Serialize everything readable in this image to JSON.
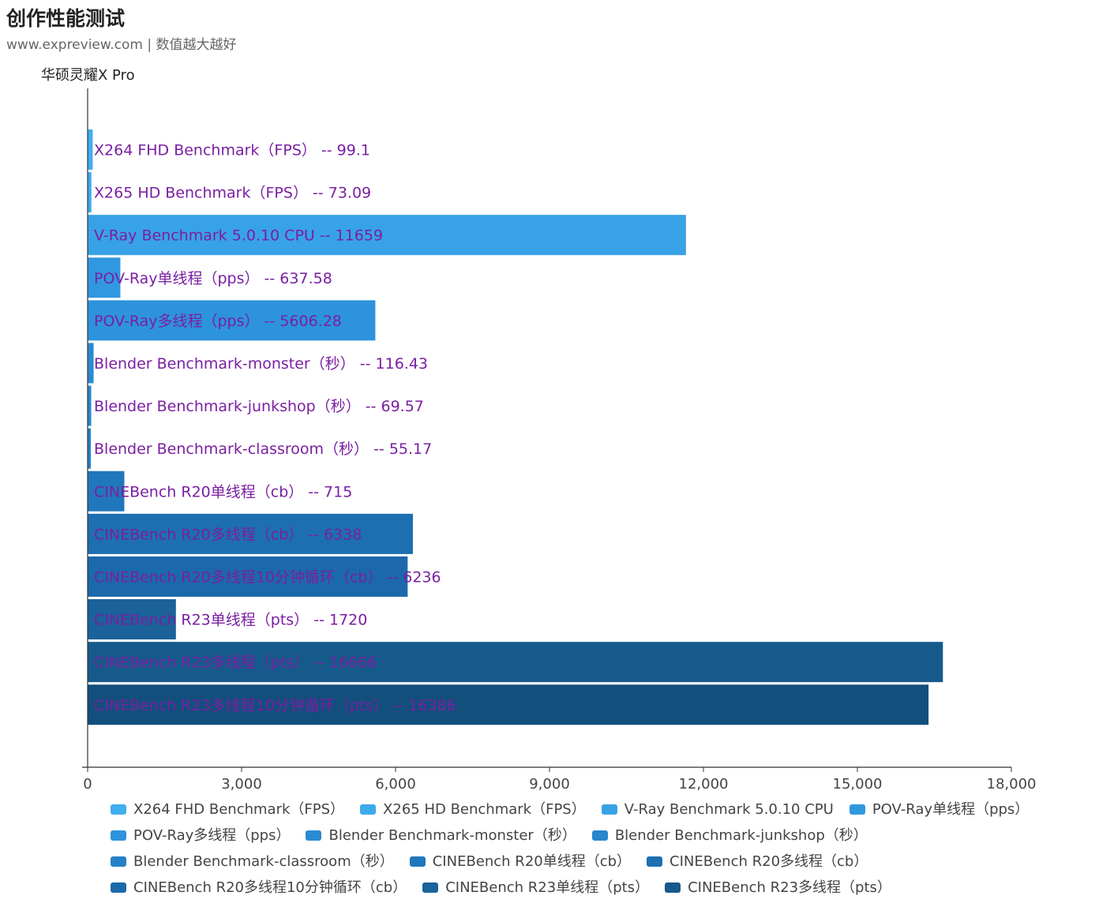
{
  "header": {
    "title": "创作性能测试",
    "subtitle": "www.expreview.com | 数值越大越好",
    "series_label": "华硕灵耀X Pro"
  },
  "chart_data": {
    "type": "bar",
    "orientation": "horizontal",
    "title": "创作性能测试",
    "subtitle": "www.expreview.com | 数值越大越好",
    "series_name": "华硕灵耀X Pro",
    "categories": [
      "X264 FHD Benchmark（FPS）",
      "X265 HD Benchmark（FPS）",
      "V-Ray Benchmark 5.0.10 CPU",
      "POV-Ray单线程（pps）",
      "POV-Ray多线程（pps）",
      "Blender Benchmark-monster（秒）",
      "Blender Benchmark-junkshop（秒）",
      "Blender Benchmark-classroom（秒）",
      "CINEBench R20单线程（cb）",
      "CINEBench R20多线程（cb）",
      "CINEBench R20多线程10分钟循环（cb）",
      "CINEBench R23单线程（pts）",
      "CINEBench R23多线程（pts）",
      "CINEBench R23多线程10分钟循环（pts）"
    ],
    "values": [
      99.1,
      73.09,
      11659,
      637.58,
      5606.28,
      116.43,
      69.57,
      55.17,
      715,
      6338,
      6236,
      1720,
      16666,
      16386
    ],
    "value_labels": [
      "99.1",
      "73.09",
      "11659",
      "637.58",
      "5606.28",
      "116.43",
      "69.57",
      "55.17",
      "715",
      "6338",
      "6236",
      "1720",
      "16666",
      "16386"
    ],
    "separator": "--",
    "colors": [
      "#41aef0",
      "#3ea9ec",
      "#38a2e6",
      "#3098e0",
      "#2d93dc",
      "#2a8bd2",
      "#2786cc",
      "#2480c6",
      "#2177bb",
      "#1d6fb0",
      "#1b69aa",
      "#1a6299",
      "#165a8b",
      "#124f7c"
    ],
    "label_color": "#7a1fa2",
    "xlim": [
      0,
      18000
    ],
    "xticks": [
      0,
      3000,
      6000,
      9000,
      12000,
      15000,
      18000
    ],
    "xtick_labels": [
      "0",
      "3,000",
      "6,000",
      "9,000",
      "12,000",
      "15,000",
      "18,000"
    ],
    "grid": false,
    "legend": "bottom"
  },
  "legend": {
    "rows": [
      [
        {
          "label": "X264 FHD Benchmark（FPS）",
          "color": "#41aef0"
        },
        {
          "label": "X265 HD Benchmark（FPS）",
          "color": "#3ea9ec"
        },
        {
          "label": "V-Ray Benchmark 5.0.10 CPU",
          "color": "#38a2e6"
        },
        {
          "label": "POV-Ray单线程（pps）",
          "color": "#3098e0"
        }
      ],
      [
        {
          "label": "POV-Ray多线程（pps）",
          "color": "#2d93dc"
        },
        {
          "label": "Blender Benchmark-monster（秒）",
          "color": "#2a8bd2"
        },
        {
          "label": "Blender Benchmark-junkshop（秒）",
          "color": "#2786cc"
        }
      ],
      [
        {
          "label": "Blender Benchmark-classroom（秒）",
          "color": "#2480c6"
        },
        {
          "label": "CINEBench R20单线程（cb）",
          "color": "#2177bb"
        },
        {
          "label": "CINEBench R20多线程（cb）",
          "color": "#1d6fb0"
        }
      ],
      [
        {
          "label": "CINEBench R20多线程10分钟循环（cb）",
          "color": "#1b69aa"
        },
        {
          "label": "CINEBench R23单线程（pts）",
          "color": "#1a6299"
        },
        {
          "label": "CINEBench R23多线程（pts）",
          "color": "#165a8b"
        }
      ]
    ]
  }
}
